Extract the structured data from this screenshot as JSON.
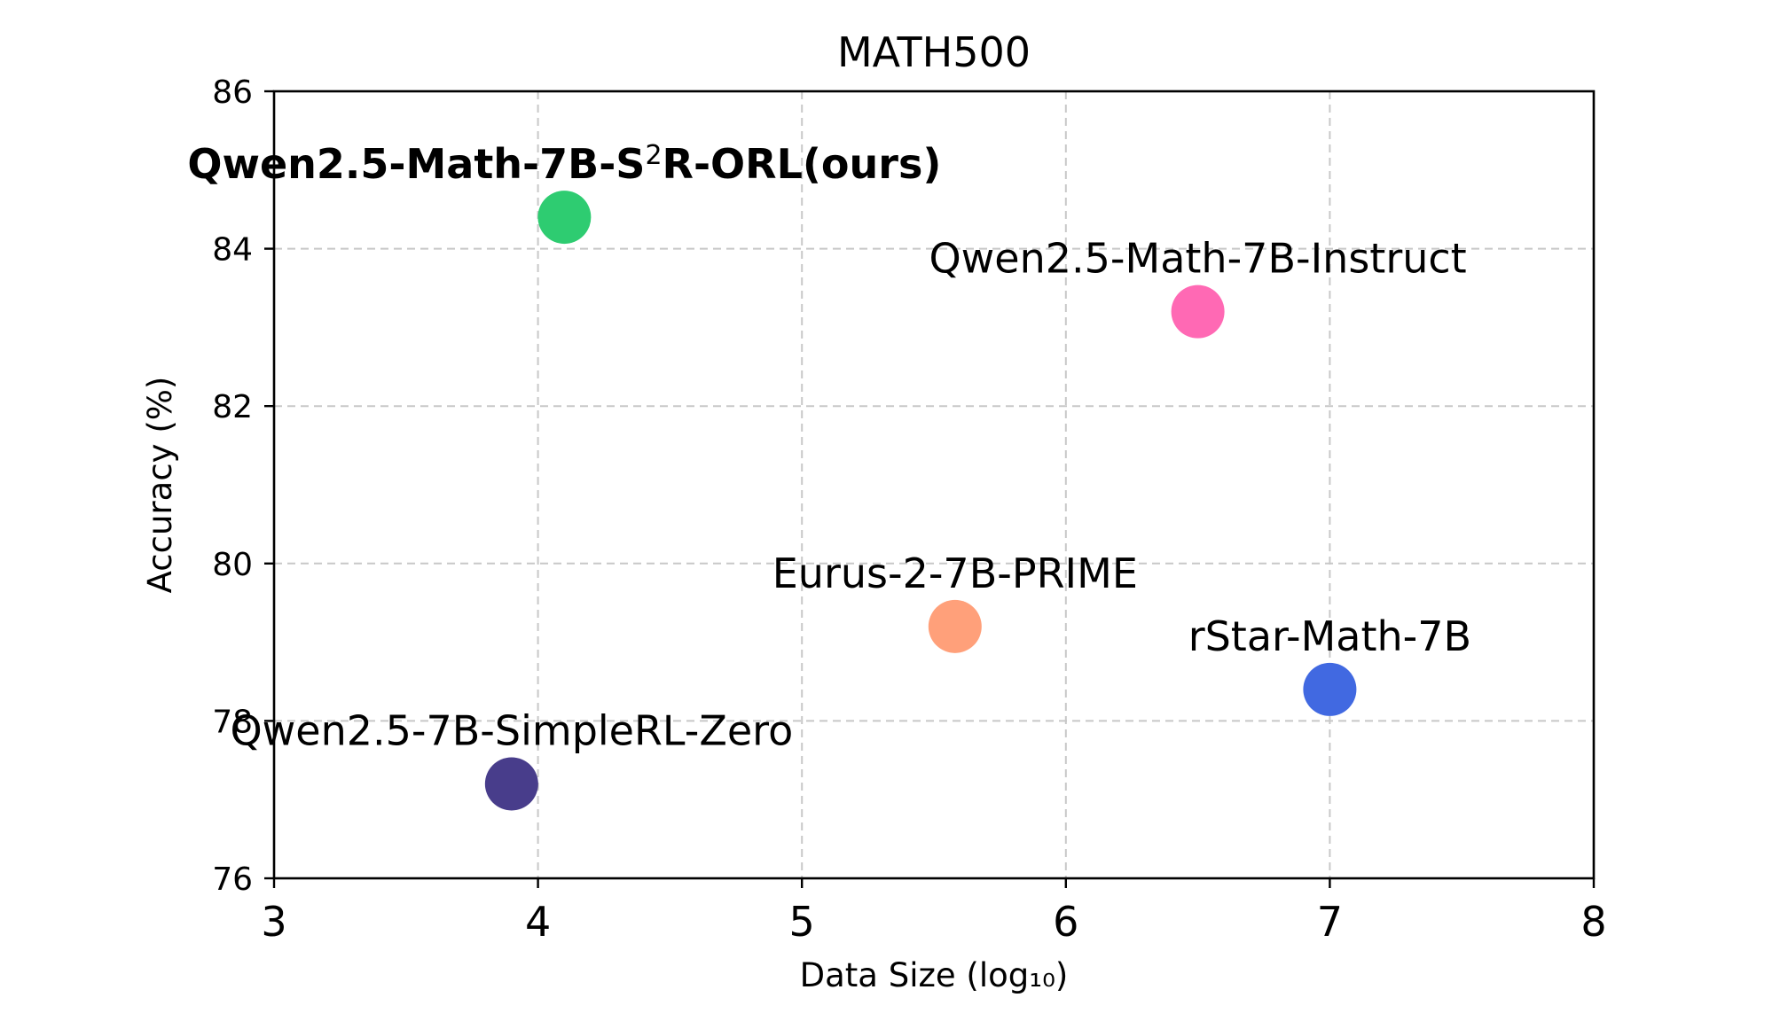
{
  "chart_data": {
    "type": "scatter",
    "title": "MATH500",
    "xlabel": "Data Size (log₁₀)",
    "ylabel": "Accuracy (%)",
    "xlim": [
      3,
      8
    ],
    "ylim": [
      76,
      86
    ],
    "xticks": [
      3,
      4,
      5,
      6,
      7,
      8
    ],
    "yticks": [
      76,
      78,
      80,
      82,
      84,
      86
    ],
    "grid": true,
    "points": [
      {
        "label": "Qwen2.5-Math-7B-S²R-ORL(ours)",
        "label_parts": [
          "Qwen2.5-Math-7B-S",
          "2",
          "R-ORL(ours)"
        ],
        "x": 4.1,
        "y": 84.4,
        "color": "#2ecc71",
        "bold": true
      },
      {
        "label": "Qwen2.5-Math-7B-Instruct",
        "x": 6.5,
        "y": 83.2,
        "color": "#ff69b4",
        "bold": false
      },
      {
        "label": "Eurus-2-7B-PRIME",
        "x": 5.58,
        "y": 79.2,
        "color": "#ffa07a",
        "bold": false
      },
      {
        "label": "rStar-Math-7B",
        "x": 7.0,
        "y": 78.4,
        "color": "#4169e1",
        "bold": false
      },
      {
        "label": "Qwen2.5-7B-SimpleRL-Zero",
        "x": 3.9,
        "y": 77.2,
        "color": "#483d8b",
        "bold": false
      }
    ]
  }
}
